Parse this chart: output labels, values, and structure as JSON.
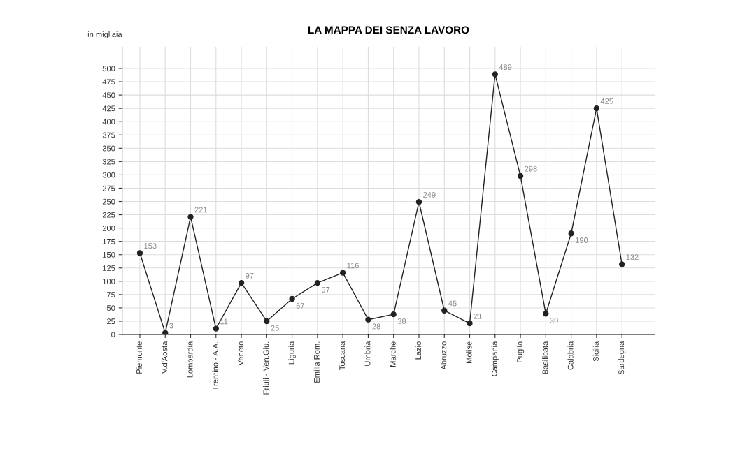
{
  "chart_data": {
    "type": "line",
    "title": "LA MAPPA DEI SENZA LAVORO",
    "ylabel": "in migliaia",
    "categories": [
      "Piemonte",
      "V.d'Aosta",
      "Lombardia",
      "Trentino - A.A.",
      "Veneto",
      "Friuli - Ven.Giu.",
      "Liguria",
      "Emilia Rom.",
      "Toscana",
      "Umbria",
      "Marche",
      "Lazio",
      "Abruzzo",
      "Molise",
      "Campania",
      "Puglia",
      "Basilicata",
      "Calabria",
      "Sicilia",
      "Sardegna"
    ],
    "series": [
      {
        "color": "#222222",
        "values": [
          153,
          3,
          221,
          11,
          97,
          25,
          67,
          97,
          116,
          28,
          38,
          249,
          45,
          21,
          489,
          298,
          39,
          190,
          425,
          132
        ]
      }
    ],
    "data_labels": true,
    "marker": "circle",
    "line_style": "solid",
    "grid": true,
    "legend": false,
    "ylim": [
      0,
      540
    ],
    "yticks": [
      0,
      25,
      50,
      75,
      100,
      125,
      150,
      175,
      200,
      225,
      250,
      275,
      300,
      325,
      350,
      375,
      400,
      425,
      450,
      475,
      500
    ]
  }
}
